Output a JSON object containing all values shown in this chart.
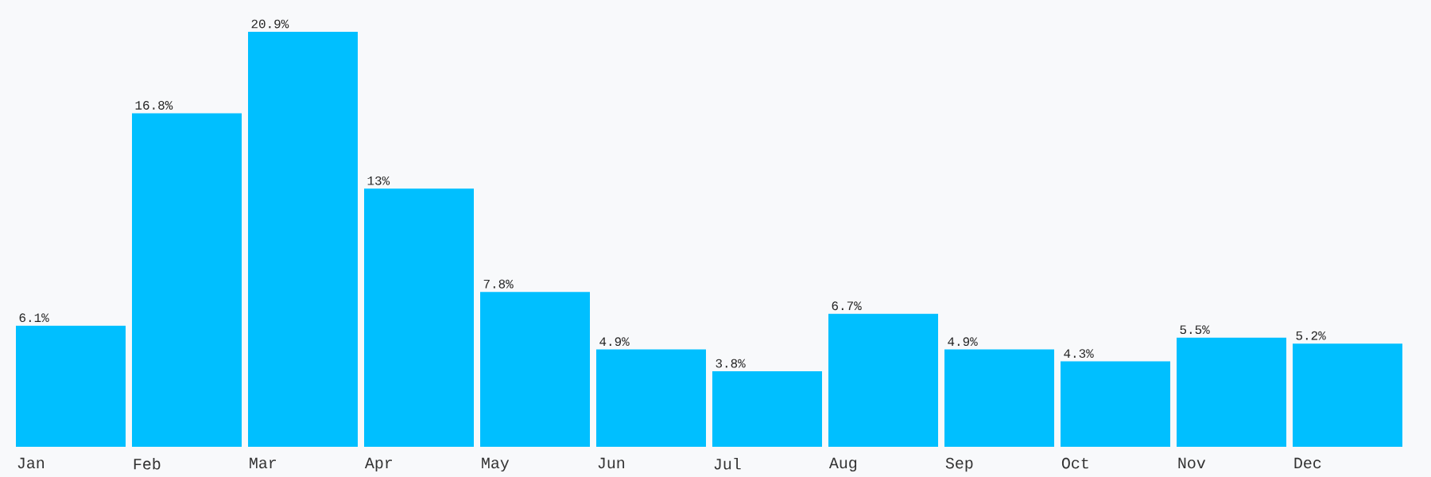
{
  "chart_data": {
    "type": "bar",
    "categories": [
      "Jan",
      "Feb",
      "Mar",
      "Apr",
      "May",
      "Jun",
      "Jul",
      "Aug",
      "Sep",
      "Oct",
      "Nov",
      "Dec"
    ],
    "values": [
      6.1,
      16.8,
      20.9,
      13,
      7.8,
      4.9,
      3.8,
      6.7,
      4.9,
      4.3,
      5.5,
      5.2
    ],
    "value_labels": [
      "6.1%",
      "16.8%",
      "20.9%",
      "13%",
      "7.8%",
      "4.9%",
      "3.8%",
      "6.7%",
      "4.9%",
      "4.3%",
      "5.5%",
      "5.2%"
    ],
    "color": "#00bfff"
  }
}
